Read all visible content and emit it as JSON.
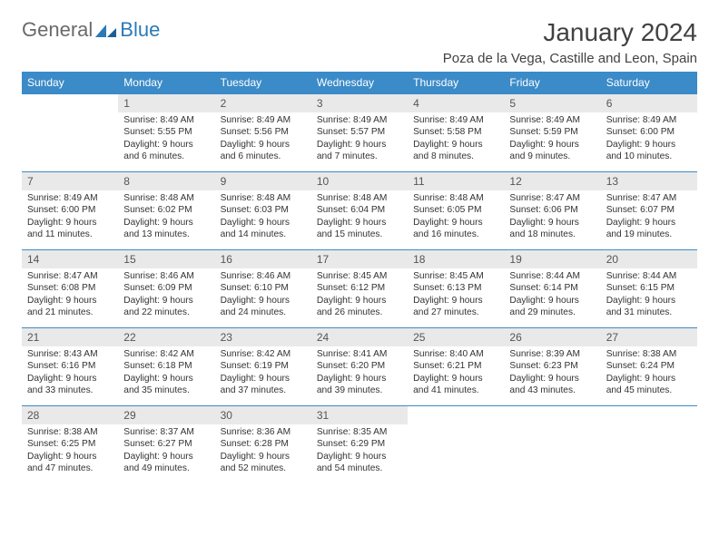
{
  "brand": {
    "general": "General",
    "blue": "Blue"
  },
  "title": "January 2024",
  "location": "Poza de la Vega, Castille and Leon, Spain",
  "colors": {
    "header_bg": "#3b8bc8",
    "header_text": "#ffffff",
    "daynum_bg": "#e9e9e9",
    "border": "#3b8bc8",
    "title_color": "#414141",
    "logo_gray": "#6a6a6a",
    "logo_blue": "#2a7ab8"
  },
  "weekdays": [
    "Sunday",
    "Monday",
    "Tuesday",
    "Wednesday",
    "Thursday",
    "Friday",
    "Saturday"
  ],
  "start_offset": 1,
  "days": [
    {
      "n": "1",
      "sr": "8:49 AM",
      "ss": "5:55 PM",
      "dh": "9",
      "dm": "6"
    },
    {
      "n": "2",
      "sr": "8:49 AM",
      "ss": "5:56 PM",
      "dh": "9",
      "dm": "6"
    },
    {
      "n": "3",
      "sr": "8:49 AM",
      "ss": "5:57 PM",
      "dh": "9",
      "dm": "7"
    },
    {
      "n": "4",
      "sr": "8:49 AM",
      "ss": "5:58 PM",
      "dh": "9",
      "dm": "8"
    },
    {
      "n": "5",
      "sr": "8:49 AM",
      "ss": "5:59 PM",
      "dh": "9",
      "dm": "9"
    },
    {
      "n": "6",
      "sr": "8:49 AM",
      "ss": "6:00 PM",
      "dh": "9",
      "dm": "10"
    },
    {
      "n": "7",
      "sr": "8:49 AM",
      "ss": "6:00 PM",
      "dh": "9",
      "dm": "11"
    },
    {
      "n": "8",
      "sr": "8:48 AM",
      "ss": "6:02 PM",
      "dh": "9",
      "dm": "13"
    },
    {
      "n": "9",
      "sr": "8:48 AM",
      "ss": "6:03 PM",
      "dh": "9",
      "dm": "14"
    },
    {
      "n": "10",
      "sr": "8:48 AM",
      "ss": "6:04 PM",
      "dh": "9",
      "dm": "15"
    },
    {
      "n": "11",
      "sr": "8:48 AM",
      "ss": "6:05 PM",
      "dh": "9",
      "dm": "16"
    },
    {
      "n": "12",
      "sr": "8:47 AM",
      "ss": "6:06 PM",
      "dh": "9",
      "dm": "18"
    },
    {
      "n": "13",
      "sr": "8:47 AM",
      "ss": "6:07 PM",
      "dh": "9",
      "dm": "19"
    },
    {
      "n": "14",
      "sr": "8:47 AM",
      "ss": "6:08 PM",
      "dh": "9",
      "dm": "21"
    },
    {
      "n": "15",
      "sr": "8:46 AM",
      "ss": "6:09 PM",
      "dh": "9",
      "dm": "22"
    },
    {
      "n": "16",
      "sr": "8:46 AM",
      "ss": "6:10 PM",
      "dh": "9",
      "dm": "24"
    },
    {
      "n": "17",
      "sr": "8:45 AM",
      "ss": "6:12 PM",
      "dh": "9",
      "dm": "26"
    },
    {
      "n": "18",
      "sr": "8:45 AM",
      "ss": "6:13 PM",
      "dh": "9",
      "dm": "27"
    },
    {
      "n": "19",
      "sr": "8:44 AM",
      "ss": "6:14 PM",
      "dh": "9",
      "dm": "29"
    },
    {
      "n": "20",
      "sr": "8:44 AM",
      "ss": "6:15 PM",
      "dh": "9",
      "dm": "31"
    },
    {
      "n": "21",
      "sr": "8:43 AM",
      "ss": "6:16 PM",
      "dh": "9",
      "dm": "33"
    },
    {
      "n": "22",
      "sr": "8:42 AM",
      "ss": "6:18 PM",
      "dh": "9",
      "dm": "35"
    },
    {
      "n": "23",
      "sr": "8:42 AM",
      "ss": "6:19 PM",
      "dh": "9",
      "dm": "37"
    },
    {
      "n": "24",
      "sr": "8:41 AM",
      "ss": "6:20 PM",
      "dh": "9",
      "dm": "39"
    },
    {
      "n": "25",
      "sr": "8:40 AM",
      "ss": "6:21 PM",
      "dh": "9",
      "dm": "41"
    },
    {
      "n": "26",
      "sr": "8:39 AM",
      "ss": "6:23 PM",
      "dh": "9",
      "dm": "43"
    },
    {
      "n": "27",
      "sr": "8:38 AM",
      "ss": "6:24 PM",
      "dh": "9",
      "dm": "45"
    },
    {
      "n": "28",
      "sr": "8:38 AM",
      "ss": "6:25 PM",
      "dh": "9",
      "dm": "47"
    },
    {
      "n": "29",
      "sr": "8:37 AM",
      "ss": "6:27 PM",
      "dh": "9",
      "dm": "49"
    },
    {
      "n": "30",
      "sr": "8:36 AM",
      "ss": "6:28 PM",
      "dh": "9",
      "dm": "52"
    },
    {
      "n": "31",
      "sr": "8:35 AM",
      "ss": "6:29 PM",
      "dh": "9",
      "dm": "54"
    }
  ],
  "labels": {
    "sunrise": "Sunrise:",
    "sunset": "Sunset:",
    "daylight": "Daylight:",
    "hours": "hours",
    "and": "and",
    "minutes": "minutes."
  }
}
